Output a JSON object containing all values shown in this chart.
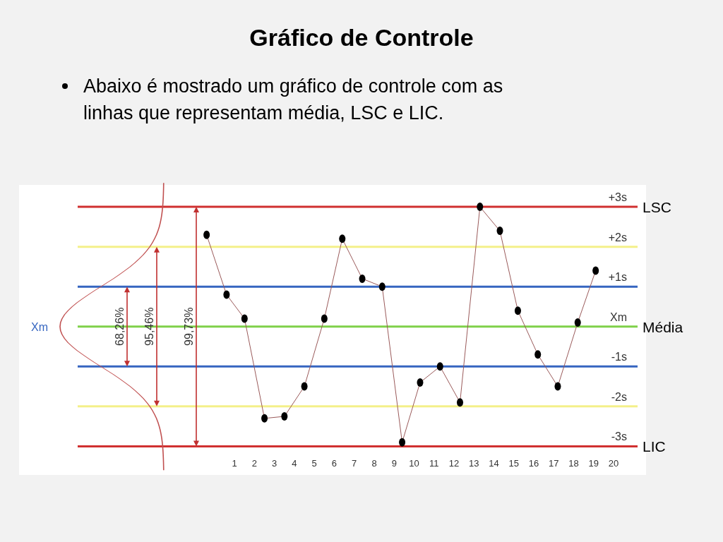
{
  "chart_data": {
    "type": "line",
    "title": "Gráfico de Controle",
    "subtitle": "Abaixo é mostrado um gráfico de controle com as linhas que representam média, LSC e LIC.",
    "xlim": [
      -9.8,
      21.2
    ],
    "xticks": [
      1,
      2,
      3,
      4,
      5,
      6,
      7,
      8,
      9,
      10,
      11,
      12,
      13,
      14,
      15,
      16,
      17,
      18,
      19,
      20
    ],
    "ylim": [
      -3.7,
      3.55
    ],
    "yticks": [
      {
        "value": 3,
        "label": "+3s"
      },
      {
        "value": 2,
        "label": "+2s"
      },
      {
        "value": 1,
        "label": "+1s"
      },
      {
        "value": 0,
        "label": "Xm"
      },
      {
        "value": -1,
        "label": "-1s"
      },
      {
        "value": -2,
        "label": "-2s"
      },
      {
        "value": -3,
        "label": "-3s"
      }
    ],
    "series": [
      {
        "color": "#000000",
        "x": [
          -0.4,
          0.6,
          1.5,
          2.5,
          3.5,
          4.5,
          5.5,
          6.4,
          7.4,
          8.4,
          9.4,
          10.3,
          11.3,
          12.3,
          13.3,
          14.3,
          15.2,
          16.2,
          17.2,
          18.2,
          19.1
        ],
        "values": [
          2.3,
          0.8,
          0.2,
          -2.3,
          -2.25,
          -1.5,
          0.2,
          2.2,
          1.2,
          1.0,
          -2.9,
          -1.4,
          -1.0,
          -1.9,
          3.0,
          2.4,
          0.4,
          -0.7,
          -1.5,
          0.1,
          1.4
        ]
      }
    ],
    "marker": "circle",
    "ref_lines": [
      {
        "axis": "y",
        "value": 3,
        "label": "LSC",
        "color": "#d03030"
      },
      {
        "axis": "y",
        "value": 2,
        "color": "#f4f08a"
      },
      {
        "axis": "y",
        "value": 1,
        "color": "#3565c0"
      },
      {
        "axis": "y",
        "value": 0,
        "label": "Média",
        "color": "#7fd04a"
      },
      {
        "axis": "y",
        "value": -1,
        "color": "#3565c0"
      },
      {
        "axis": "y",
        "value": -2,
        "color": "#f4f08a"
      },
      {
        "axis": "y",
        "value": -3,
        "label": "LIC",
        "color": "#d03030"
      }
    ],
    "annotations": [
      "Xm",
      "68,26%",
      "95,46%",
      "99,73%"
    ]
  }
}
